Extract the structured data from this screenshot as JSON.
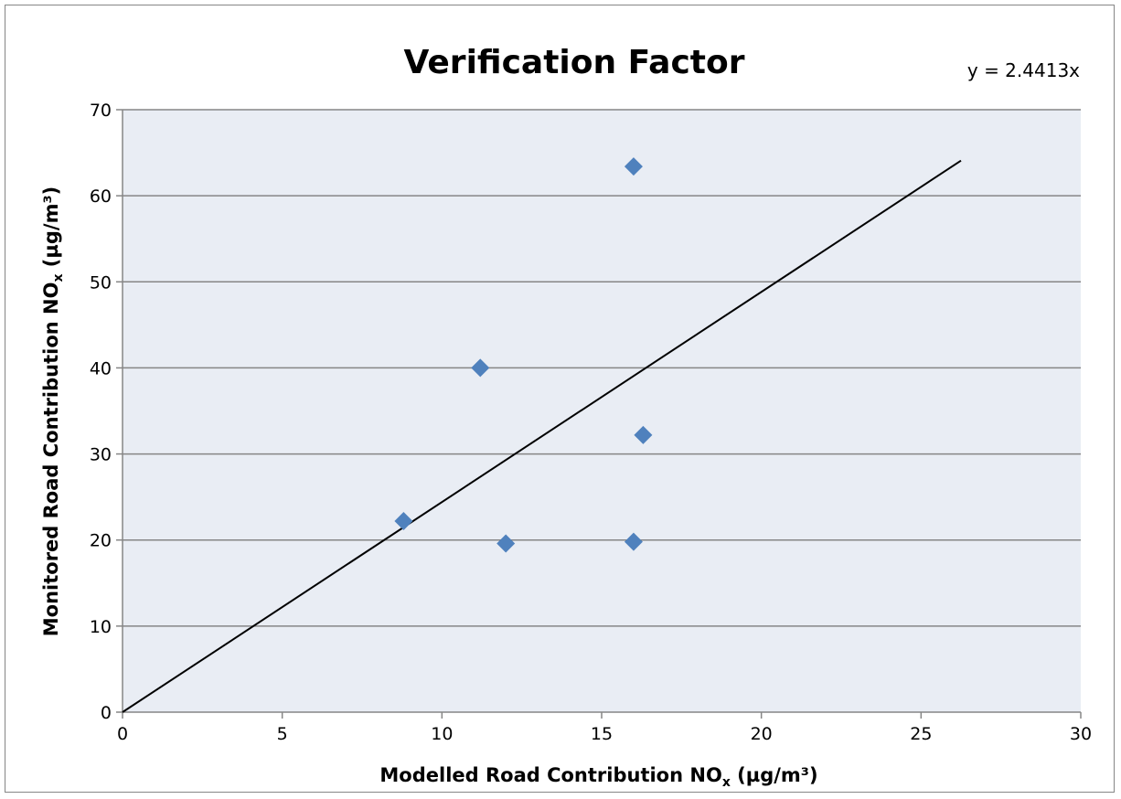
{
  "chart_data": {
    "type": "scatter",
    "title": "Verification Factor",
    "equation": "y = 2.4413x",
    "xlabel": {
      "main": "Modelled Road Contribution NO",
      "sub": "x",
      "units": " (µg/m³)"
    },
    "ylabel": {
      "main": "Monitored Road Contribution NO",
      "sub": "x",
      "units": " (µg/m³)"
    },
    "xlim": [
      0,
      30
    ],
    "ylim": [
      0,
      70
    ],
    "xticks": [
      "0",
      "5",
      "10",
      "15",
      "20",
      "25",
      "30"
    ],
    "yticks": [
      "0",
      "10",
      "20",
      "30",
      "40",
      "50",
      "60",
      "70"
    ],
    "grid": "horizontal",
    "plot_background": "#e9edf4",
    "series": [
      {
        "marker": "diamond",
        "color": "#4f81bd",
        "points": [
          {
            "x": 8.8,
            "y": 22.2
          },
          {
            "x": 11.2,
            "y": 40.0
          },
          {
            "x": 12.0,
            "y": 19.6
          },
          {
            "x": 16.0,
            "y": 63.4
          },
          {
            "x": 16.0,
            "y": 19.8
          },
          {
            "x": 16.3,
            "y": 32.2
          }
        ]
      }
    ],
    "trendline": {
      "slope": 2.4413,
      "intercept": 0,
      "x_start": 0,
      "x_end": 26.25,
      "color": "#000000"
    }
  }
}
